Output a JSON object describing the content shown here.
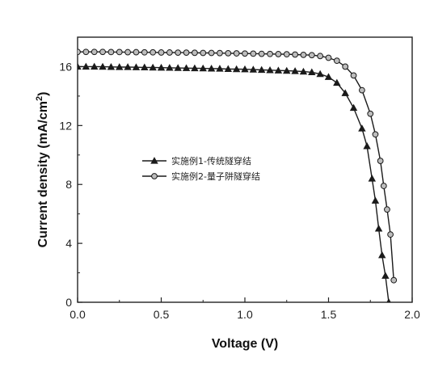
{
  "chart_data": {
    "type": "line",
    "xlabel": "Voltage (V)",
    "ylabel_main": "Current density (mA/cm",
    "ylabel_sup": "2",
    "ylabel_tail": ")",
    "xlim": [
      0,
      2.0
    ],
    "ylim": [
      0,
      18
    ],
    "xticks": [
      0.0,
      0.5,
      1.0,
      1.5,
      2.0
    ],
    "xtick_labels": [
      "0.0",
      "0.5",
      "1.0",
      "1.5",
      "2.0"
    ],
    "yticks": [
      0,
      4,
      8,
      12,
      16
    ],
    "ytick_labels": [
      "0",
      "4",
      "8",
      "12",
      "16"
    ],
    "legend_position": "center-left",
    "series": [
      {
        "name": "实施例1-传统隧穿结",
        "marker": "triangle",
        "x": [
          0.0,
          0.05,
          0.1,
          0.15,
          0.2,
          0.25,
          0.3,
          0.35,
          0.4,
          0.45,
          0.5,
          0.55,
          0.6,
          0.65,
          0.7,
          0.75,
          0.8,
          0.85,
          0.9,
          0.95,
          1.0,
          1.05,
          1.1,
          1.15,
          1.2,
          1.25,
          1.3,
          1.35,
          1.4,
          1.45,
          1.5,
          1.55,
          1.6,
          1.65,
          1.7,
          1.73,
          1.76,
          1.78,
          1.8,
          1.82,
          1.84,
          1.86
        ],
        "y": [
          16.0,
          16.0,
          16.0,
          15.99,
          15.98,
          15.97,
          15.97,
          15.96,
          15.95,
          15.94,
          15.93,
          15.92,
          15.91,
          15.9,
          15.89,
          15.88,
          15.87,
          15.86,
          15.84,
          15.83,
          15.82,
          15.8,
          15.78,
          15.76,
          15.74,
          15.72,
          15.7,
          15.66,
          15.62,
          15.5,
          15.3,
          14.9,
          14.2,
          13.2,
          11.8,
          10.6,
          8.4,
          6.9,
          5.0,
          3.2,
          1.8,
          0.0
        ]
      },
      {
        "name": "实施例2-量子阱隧穿结",
        "marker": "circle",
        "x": [
          0.0,
          0.05,
          0.1,
          0.15,
          0.2,
          0.25,
          0.3,
          0.35,
          0.4,
          0.45,
          0.5,
          0.55,
          0.6,
          0.65,
          0.7,
          0.75,
          0.8,
          0.85,
          0.9,
          0.95,
          1.0,
          1.05,
          1.1,
          1.15,
          1.2,
          1.25,
          1.3,
          1.35,
          1.4,
          1.45,
          1.5,
          1.55,
          1.6,
          1.65,
          1.7,
          1.75,
          1.78,
          1.81,
          1.83,
          1.85,
          1.87,
          1.89
        ],
        "y": [
          17.0,
          17.0,
          17.0,
          17.0,
          16.99,
          16.99,
          16.98,
          16.98,
          16.97,
          16.97,
          16.96,
          16.96,
          16.95,
          16.95,
          16.94,
          16.93,
          16.93,
          16.92,
          16.91,
          16.9,
          16.89,
          16.88,
          16.87,
          16.86,
          16.85,
          16.84,
          16.82,
          16.8,
          16.78,
          16.72,
          16.6,
          16.4,
          16.0,
          15.4,
          14.4,
          12.8,
          11.4,
          9.6,
          7.9,
          6.3,
          4.6,
          1.5
        ]
      }
    ]
  }
}
